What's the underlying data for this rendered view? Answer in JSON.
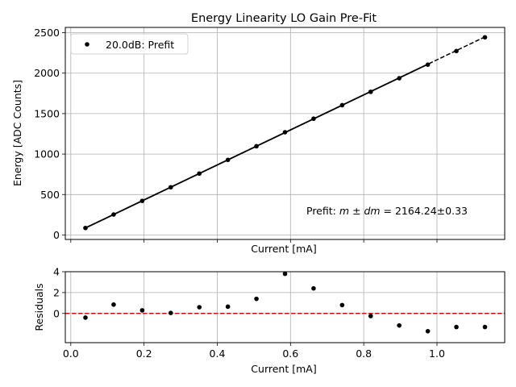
{
  "colors": {
    "points": "#000000",
    "fit_line": "#000000",
    "zero_line": "#ff0000",
    "grid": "#b0b0b0",
    "axes": "#000000",
    "background": "#ffffff"
  },
  "chart_data": [
    {
      "type": "line",
      "title": "Energy Linearity LO Gain Pre-Fit",
      "xlabel": "Current [mA]",
      "ylabel": "Energy [ADC Counts]",
      "xlim": [
        -0.015,
        1.185
      ],
      "ylim": [
        -55,
        2565
      ],
      "xticks": [
        0.0,
        0.2,
        0.4,
        0.6,
        0.8,
        1.0
      ],
      "yticks": [
        0,
        500,
        1000,
        1500,
        2000,
        2500
      ],
      "ytick_labels": [
        "0",
        "500",
        "1000",
        "1500",
        "2000",
        "2500"
      ],
      "grid": true,
      "legend": {
        "position": "top-left",
        "entries": [
          "20.0dB: Prefit"
        ]
      },
      "annotation": {
        "prefix": "Prefit: ",
        "math": "m ± dm",
        "suffix": " = 2164.24±0.33"
      },
      "series": [
        {
          "name": "20.0dB: Prefit",
          "style": "points",
          "x": [
            0.04,
            0.117,
            0.195,
            0.273,
            0.351,
            0.429,
            0.507,
            0.585,
            0.663,
            0.741,
            0.819,
            0.897,
            0.975,
            1.053,
            1.131
          ],
          "y": [
            87,
            253,
            422,
            590,
            759,
            928,
            1097,
            1270,
            1437,
            1604,
            1769,
            1937,
            2105,
            2273,
            2443
          ]
        },
        {
          "name": "fit (fitted range)",
          "style": "solid",
          "x": [
            0.04,
            0.975
          ],
          "y": [
            87,
            2110
          ]
        },
        {
          "name": "fit (extrapolated)",
          "style": "dashed",
          "x": [
            0.04,
            1.131
          ],
          "y": [
            87,
            2448
          ]
        }
      ]
    },
    {
      "type": "scatter",
      "title": "",
      "xlabel": "Current [mA]",
      "ylabel": "Residuals",
      "xlim": [
        -0.015,
        1.185
      ],
      "ylim": [
        -2.8,
        4.0
      ],
      "xticks": [
        0.0,
        0.2,
        0.4,
        0.6,
        0.8,
        1.0
      ],
      "xtick_labels": [
        "0.0",
        "0.2",
        "0.4",
        "0.6",
        "0.8",
        "1.0"
      ],
      "yticks": [
        0,
        2,
        4
      ],
      "ytick_labels": [
        "0",
        "2",
        "4"
      ],
      "grid": true,
      "reference_line": {
        "y": 0,
        "style": "dashed"
      },
      "series": [
        {
          "name": "residuals",
          "x": [
            0.04,
            0.117,
            0.195,
            0.273,
            0.351,
            0.429,
            0.507,
            0.585,
            0.663,
            0.741,
            0.819,
            0.897,
            0.975,
            1.053,
            1.131
          ],
          "y": [
            -0.4,
            0.85,
            0.3,
            0.05,
            0.6,
            0.65,
            1.4,
            3.8,
            2.4,
            0.8,
            -0.25,
            -1.15,
            -1.7,
            -1.3,
            -1.3
          ]
        }
      ]
    }
  ]
}
